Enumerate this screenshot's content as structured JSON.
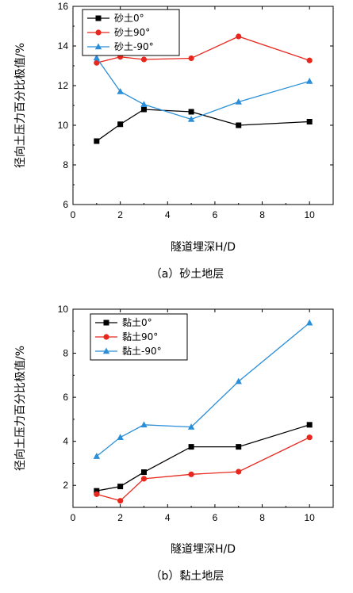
{
  "chart_data": [
    {
      "type": "line",
      "caption": "（a）砂土地层",
      "xlabel": "隧道埋深H/D",
      "ylabel": "径向土压力百分比极值/%",
      "xlim": [
        0,
        11
      ],
      "ylim": [
        6,
        16
      ],
      "xticks": [
        0,
        2,
        4,
        6,
        8,
        10
      ],
      "yticks": [
        6,
        8,
        10,
        12,
        14,
        16
      ],
      "legend_position": "top-left",
      "series": [
        {
          "name": "砂土0°",
          "color": "#000000",
          "marker": "square",
          "x": [
            1,
            2,
            3,
            5,
            7,
            10
          ],
          "y": [
            9.2,
            10.05,
            10.8,
            10.68,
            10.0,
            10.18
          ]
        },
        {
          "name": "砂土90°",
          "color": "#e8281e",
          "marker": "circle",
          "x": [
            1,
            2,
            3,
            5,
            7,
            10
          ],
          "y": [
            13.15,
            13.45,
            13.32,
            13.38,
            14.48,
            13.27
          ]
        },
        {
          "name": "砂土-90°",
          "color": "#2a8fd8",
          "marker": "triangle",
          "x": [
            1,
            2,
            3,
            5,
            7,
            10
          ],
          "y": [
            13.4,
            11.7,
            11.05,
            10.3,
            11.18,
            12.22
          ]
        }
      ]
    },
    {
      "type": "line",
      "caption": "（b）黏土地层",
      "xlabel": "隧道埋深H/D",
      "ylabel": "径向土压力百分比极值/%",
      "xlim": [
        0,
        11
      ],
      "ylim": [
        1,
        10
      ],
      "xticks": [
        0,
        2,
        4,
        6,
        8,
        10
      ],
      "yticks": [
        2,
        4,
        6,
        8,
        10
      ],
      "legend_position": "top-left",
      "series": [
        {
          "name": "黏土0°",
          "color": "#000000",
          "marker": "square",
          "x": [
            1,
            2,
            3,
            5,
            7,
            10
          ],
          "y": [
            1.75,
            1.95,
            2.6,
            3.75,
            3.75,
            4.75
          ]
        },
        {
          "name": "黏土90°",
          "color": "#e8281e",
          "marker": "circle",
          "x": [
            1,
            2,
            3,
            5,
            7,
            10
          ],
          "y": [
            1.6,
            1.3,
            2.3,
            2.5,
            2.62,
            4.18
          ]
        },
        {
          "name": "黏土-90°",
          "color": "#2a8fd8",
          "marker": "triangle",
          "x": [
            1,
            2,
            3,
            5,
            7,
            10
          ],
          "y": [
            3.32,
            4.18,
            4.75,
            4.65,
            6.72,
            9.38
          ]
        }
      ]
    }
  ]
}
